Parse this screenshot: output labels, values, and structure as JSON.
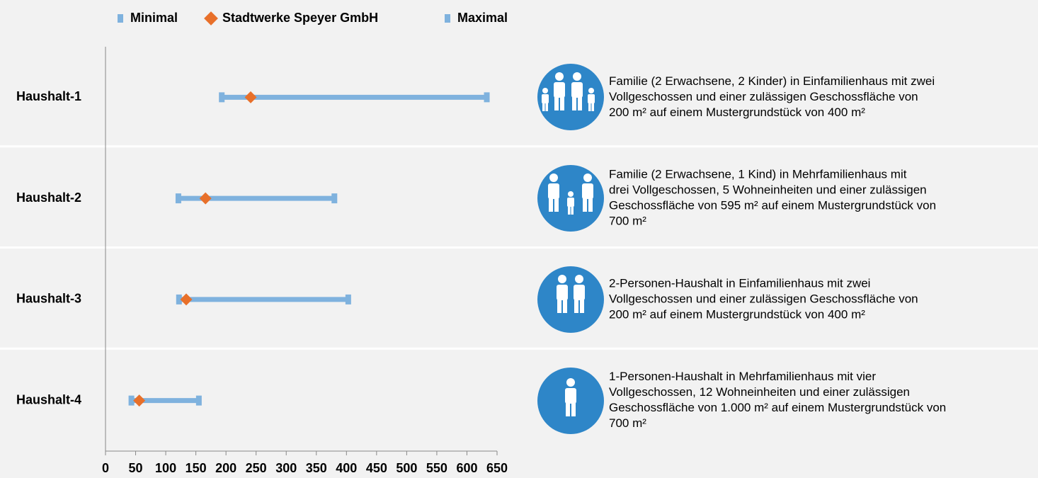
{
  "chart_data": {
    "type": "range",
    "categories": [
      "Haushalt-1",
      "Haushalt-2",
      "Haushalt-3",
      "Haushalt-4"
    ],
    "series": [
      {
        "name": "Minimal",
        "color": "#7fb2de",
        "values": [
          193,
          121,
          122,
          43
        ]
      },
      {
        "name": "Stadtwerke Speyer GmbH",
        "color": "#e8702a",
        "values": [
          241,
          166,
          134,
          56
        ]
      },
      {
        "name": "Maximal",
        "color": "#7fb2de",
        "values": [
          633,
          380,
          403,
          155
        ]
      }
    ],
    "xlim": [
      0,
      650
    ],
    "xticks": [
      0,
      50,
      100,
      150,
      200,
      250,
      300,
      350,
      400,
      450,
      500,
      550,
      600,
      650
    ],
    "legend": "top",
    "descriptions": [
      [
        "Familie (2 Erwachsene, 2 Kinder) in Einfamilienhaus mit zwei",
        "Vollgeschossen und einer zulässigen Geschossfläche von",
        "200 m² auf einem Mustergrundstück von 400 m²"
      ],
      [
        "Familie (2 Erwachsene, 1 Kind) in Mehrfamilienhaus mit",
        "drei Vollgeschossen, 5 Wohneinheiten und einer zulässigen",
        "Geschossfläche von 595 m² auf einem Mustergrundstück von",
        "700 m²"
      ],
      [
        "2-Personen-Haushalt in Einfamilienhaus mit zwei",
        "Vollgeschossen und einer zulässigen Geschossfläche von",
        "200 m² auf einem Mustergrundstück von 400 m²"
      ],
      [
        "1-Personen-Haushalt in Mehrfamilienhaus mit vier",
        "Vollgeschossen, 12 Wohneinheiten und einer zulässigen",
        "Geschossfläche von 1.000 m² auf einem Mustergrundstück von",
        "700 m²"
      ]
    ]
  }
}
